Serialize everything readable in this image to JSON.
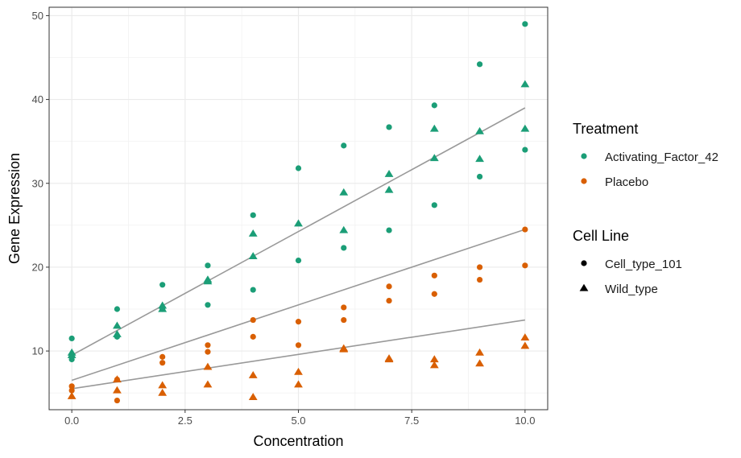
{
  "chart_data": {
    "type": "scatter",
    "xlabel": "Concentration",
    "ylabel": "Gene Expression",
    "xlim": [
      -0.5,
      10.5
    ],
    "ylim": [
      3.0,
      51.0
    ],
    "xticks": [
      0,
      2.5,
      5,
      7.5,
      10
    ],
    "xtick_labels": [
      "0.0",
      "2.5",
      "5.0",
      "7.5",
      "10.0"
    ],
    "yticks": [
      10,
      20,
      30,
      40,
      50
    ],
    "ytick_labels": [
      "10",
      "20",
      "30",
      "40",
      "50"
    ],
    "grid": true,
    "legend_position": "right",
    "legends": [
      {
        "title": "Treatment",
        "entries": [
          {
            "label": "Activating_Factor_42",
            "color": "#1b9e77",
            "shape": "circle"
          },
          {
            "label": "Placebo",
            "color": "#d95f02",
            "shape": "circle"
          }
        ]
      },
      {
        "title": "Cell Line",
        "entries": [
          {
            "label": "Cell_type_101",
            "color": "#000000",
            "shape": "circle"
          },
          {
            "label": "Wild_type",
            "color": "#000000",
            "shape": "triangle"
          }
        ]
      }
    ],
    "colors": {
      "Activating_Factor_42": "#1b9e77",
      "Placebo": "#d95f02",
      "fit_line": "#999999"
    },
    "series": [
      {
        "treatment": "Activating_Factor_42",
        "cell_line": "Cell_type_101",
        "points": [
          [
            0,
            11.5
          ],
          [
            0,
            9.0
          ],
          [
            1,
            15.0
          ],
          [
            1,
            11.7
          ],
          [
            2,
            17.9
          ],
          [
            2,
            15.0
          ],
          [
            3,
            20.2
          ],
          [
            3,
            15.5
          ],
          [
            4,
            26.2
          ],
          [
            4,
            17.3
          ],
          [
            5,
            31.8
          ],
          [
            5,
            20.8
          ],
          [
            6,
            34.5
          ],
          [
            6,
            22.3
          ],
          [
            7,
            36.7
          ],
          [
            7,
            24.4
          ],
          [
            8,
            39.3
          ],
          [
            8,
            27.4
          ],
          [
            9,
            44.2
          ],
          [
            9,
            30.8
          ],
          [
            10,
            49.0
          ],
          [
            10,
            34.0
          ]
        ]
      },
      {
        "treatment": "Activating_Factor_42",
        "cell_line": "Wild_type",
        "points": [
          [
            0,
            9.8
          ],
          [
            0,
            9.5
          ],
          [
            1,
            13.0
          ],
          [
            1,
            12.0
          ],
          [
            2,
            15.4
          ],
          [
            2,
            15.0
          ],
          [
            3,
            18.5
          ],
          [
            3,
            18.3
          ],
          [
            4,
            24.0
          ],
          [
            4,
            21.3
          ],
          [
            5,
            25.2
          ],
          [
            6,
            28.9
          ],
          [
            6,
            24.4
          ],
          [
            7,
            31.1
          ],
          [
            7,
            29.2
          ],
          [
            8,
            36.5
          ],
          [
            8,
            33.0
          ],
          [
            9,
            36.2
          ],
          [
            9,
            32.9
          ],
          [
            10,
            41.8
          ],
          [
            10,
            36.5
          ]
        ]
      },
      {
        "treatment": "Placebo",
        "cell_line": "Cell_type_101",
        "points": [
          [
            0,
            5.8
          ],
          [
            0,
            5.3
          ],
          [
            1,
            6.6
          ],
          [
            1,
            4.1
          ],
          [
            2,
            9.3
          ],
          [
            2,
            8.6
          ],
          [
            3,
            10.7
          ],
          [
            3,
            9.9
          ],
          [
            4,
            13.7
          ],
          [
            4,
            11.7
          ],
          [
            5,
            13.5
          ],
          [
            5,
            10.7
          ],
          [
            6,
            15.2
          ],
          [
            6,
            13.7
          ],
          [
            7,
            17.7
          ],
          [
            7,
            16.0
          ],
          [
            8,
            19.0
          ],
          [
            8,
            16.8
          ],
          [
            9,
            20.0
          ],
          [
            9,
            18.5
          ],
          [
            10,
            24.5
          ],
          [
            10,
            20.2
          ]
        ]
      },
      {
        "treatment": "Placebo",
        "cell_line": "Wild_type",
        "points": [
          [
            0,
            4.6
          ],
          [
            1,
            6.6
          ],
          [
            1,
            5.3
          ],
          [
            2,
            5.9
          ],
          [
            2,
            5.0
          ],
          [
            3,
            8.1
          ],
          [
            3,
            6.0
          ],
          [
            4,
            7.1
          ],
          [
            4,
            4.5
          ],
          [
            5,
            7.5
          ],
          [
            5,
            6.0
          ],
          [
            6,
            10.3
          ],
          [
            6,
            10.2
          ],
          [
            7,
            9.1
          ],
          [
            7,
            9.0
          ],
          [
            8,
            9.0
          ],
          [
            8,
            8.3
          ],
          [
            9,
            9.8
          ],
          [
            9,
            8.5
          ],
          [
            10,
            11.6
          ],
          [
            10,
            10.6
          ]
        ]
      }
    ],
    "fit_lines": [
      {
        "x": [
          0,
          10
        ],
        "y": [
          9.5,
          39.0
        ]
      },
      {
        "x": [
          0,
          10
        ],
        "y": [
          6.5,
          24.5
        ]
      },
      {
        "x": [
          0,
          10
        ],
        "y": [
          5.5,
          13.7
        ]
      }
    ]
  }
}
